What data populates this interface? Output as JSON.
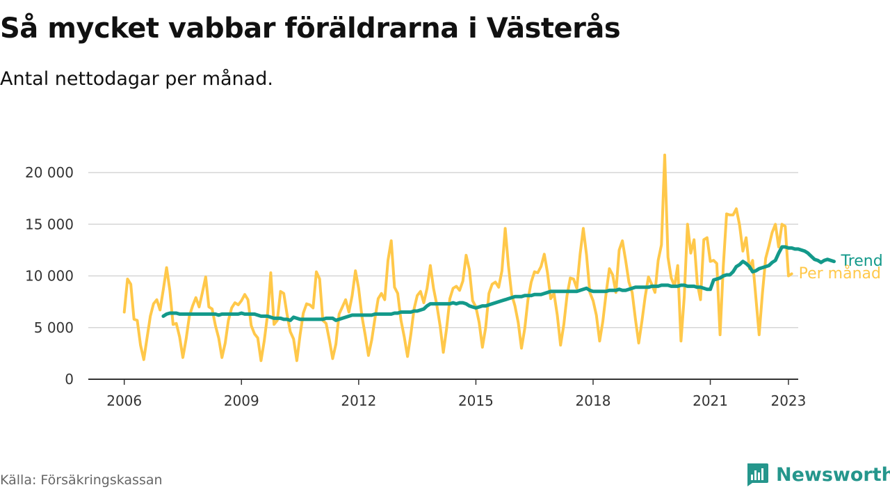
{
  "title": "Så mycket vabbar föräldrarna i Västerås",
  "subtitle": "Antal nettodagar per månad.",
  "source": "Källa: Försäkringskassan",
  "brand": {
    "name": "Newsworthy",
    "icon": "newsworthy-logo-icon",
    "color": "#25968c"
  },
  "chart_data": {
    "type": "line",
    "title": "Så mycket vabbar föräldrarna i Västerås",
    "subtitle": "Antal nettodagar per månad.",
    "xlabel": "",
    "ylabel": "",
    "x_ticks": [
      "2006",
      "2009",
      "2012",
      "2015",
      "2018",
      "2021",
      "2023"
    ],
    "x_tick_values": [
      2006,
      2009,
      2012,
      2015,
      2018,
      2021,
      2023
    ],
    "y_ticks": [
      "0",
      "5 000",
      "10 000",
      "15 000",
      "20 000"
    ],
    "y_tick_values": [
      0,
      5000,
      10000,
      15000,
      20000
    ],
    "xlim": [
      2005.08,
      2023.25
    ],
    "ylim": [
      0,
      20000
    ],
    "grid": true,
    "legend": "inline-right",
    "series": [
      {
        "name": "Per månad",
        "color": "#ffc84a",
        "start_year": 2006.0,
        "values": [
          6500,
          9700,
          9200,
          5800,
          5700,
          3300,
          1900,
          4000,
          6100,
          7300,
          7700,
          6700,
          8700,
          10800,
          8600,
          5300,
          5400,
          4100,
          2100,
          3900,
          6100,
          7100,
          7900,
          7000,
          8400,
          9900,
          7000,
          6800,
          5200,
          4000,
          2100,
          3500,
          5700,
          6900,
          7400,
          7200,
          7600,
          8200,
          7700,
          5200,
          4400,
          4000,
          1800,
          3700,
          6200,
          10300,
          5300,
          5700,
          8500,
          8300,
          6300,
          4600,
          3900,
          1800,
          4300,
          6400,
          7300,
          7200,
          6900,
          10400,
          9700,
          5700,
          5400,
          3800,
          2000,
          3400,
          6300,
          7000,
          7700,
          6500,
          8100,
          10500,
          8800,
          6100,
          4300,
          2300,
          3800,
          5900,
          7800,
          8300,
          7700,
          11500,
          13400,
          8900,
          8300,
          5700,
          4100,
          2200,
          4300,
          6800,
          8100,
          8500,
          7400,
          8800,
          11000,
          8800,
          7200,
          5200,
          2600,
          4900,
          7800,
          8800,
          9000,
          8600,
          9500,
          12000,
          10600,
          7600,
          7000,
          5500,
          3100,
          5000,
          8300,
          9200,
          9400,
          8900,
          10500,
          14600,
          11000,
          8200,
          7100,
          5500,
          3000,
          4900,
          7700,
          9400,
          10400,
          10300,
          10900,
          12100,
          10300,
          7800,
          8300,
          6200,
          3300,
          5300,
          8100,
          9800,
          9700,
          8800,
          12100,
          14600,
          12000,
          8400,
          7600,
          6200,
          3700,
          5600,
          8300,
          10700,
          10100,
          8400,
          12500,
          13400,
          11500,
          9400,
          8400,
          5800,
          3500,
          5600,
          8000,
          9900,
          9200,
          8400,
          11500,
          13000,
          21700,
          11800,
          9800,
          9000,
          11000,
          3700,
          8000,
          15000,
          12200,
          13500,
          9300,
          7700,
          13500,
          13700,
          11400,
          11500,
          11200,
          4300,
          11000,
          16000,
          15900,
          15900,
          16500,
          14900,
          12400,
          13700,
          10700,
          11500,
          7900,
          4300,
          8300,
          11700,
          12900,
          14200,
          15000,
          12800,
          15000,
          14800,
          10000,
          10200
        ]
      },
      {
        "name": "Trend",
        "color": "#13998a",
        "start_year": 2007.0,
        "values": [
          6100,
          6300,
          6400,
          6400,
          6400,
          6300,
          6300,
          6300,
          6300,
          6300,
          6300,
          6300,
          6300,
          6300,
          6300,
          6300,
          6300,
          6200,
          6300,
          6300,
          6300,
          6300,
          6300,
          6300,
          6400,
          6300,
          6300,
          6300,
          6300,
          6200,
          6100,
          6100,
          6100,
          6000,
          5900,
          5900,
          5900,
          5800,
          5800,
          5700,
          6000,
          5900,
          5800,
          5800,
          5800,
          5800,
          5800,
          5800,
          5800,
          5800,
          5900,
          5900,
          5900,
          5700,
          5800,
          5900,
          6000,
          6100,
          6200,
          6200,
          6200,
          6200,
          6200,
          6200,
          6200,
          6300,
          6300,
          6300,
          6300,
          6300,
          6300,
          6400,
          6400,
          6500,
          6500,
          6500,
          6500,
          6600,
          6600,
          6700,
          6800,
          7100,
          7300,
          7300,
          7300,
          7300,
          7300,
          7300,
          7300,
          7400,
          7300,
          7400,
          7400,
          7300,
          7100,
          7000,
          6900,
          7000,
          7100,
          7100,
          7200,
          7300,
          7400,
          7500,
          7600,
          7700,
          7800,
          7900,
          8000,
          8000,
          8000,
          8100,
          8100,
          8100,
          8200,
          8200,
          8200,
          8300,
          8400,
          8500,
          8500,
          8500,
          8500,
          8500,
          8500,
          8500,
          8500,
          8500,
          8600,
          8700,
          8800,
          8600,
          8500,
          8500,
          8500,
          8500,
          8500,
          8600,
          8600,
          8600,
          8700,
          8600,
          8600,
          8700,
          8800,
          8900,
          8900,
          8900,
          8900,
          8900,
          9000,
          9000,
          9000,
          9100,
          9100,
          9100,
          9000,
          9000,
          9000,
          9100,
          9100,
          9000,
          9000,
          9000,
          8900,
          8900,
          8800,
          8700,
          8700,
          9600,
          9700,
          9800,
          10000,
          10100,
          10100,
          10400,
          10900,
          11100,
          11400,
          11200,
          10900,
          10400,
          10500,
          10700,
          10800,
          10900,
          11000,
          11300,
          11500,
          12200,
          12800,
          12800,
          12700,
          12700,
          12600,
          12600,
          12500,
          12400,
          12200,
          11900,
          11600,
          11500,
          11300,
          11500,
          11600,
          11500,
          11400
        ]
      }
    ]
  }
}
